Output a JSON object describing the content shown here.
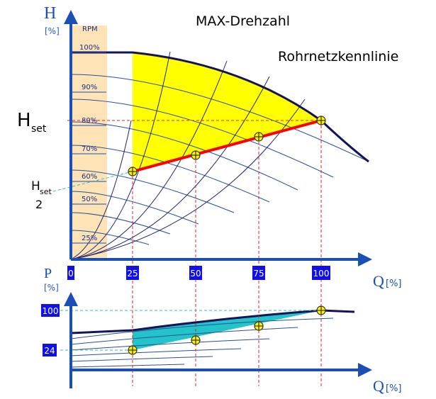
{
  "colors": {
    "axis": "#1a4fb5",
    "rpm_band": "#fde3b6",
    "rpm_label": "#1a2e8a",
    "h_label_blue": "#2a55c8",
    "yellow_fill": "#ffff00",
    "cyan_fill": "#22c3c9",
    "red_line": "#ff0000",
    "dark_curve": "#14145a",
    "guide_red": "#e02020",
    "guide_cyan": "#2fbfbf",
    "marker_fill": "#fff200",
    "tick_box": "#1010ee",
    "tick_text": "#ffffff"
  },
  "labels": {
    "max_speed": "MAX-Drehzahl",
    "system_curve": "Rohrnetzkennlinie",
    "h_axis": "H",
    "h_unit": "[%]",
    "rpm": "RPM",
    "h_set": "H",
    "h_set_sub": "set",
    "h_set2": "H",
    "h_set2_sub": "set",
    "h_set2_num": "2",
    "p_axis": "P",
    "p_unit": "[%]",
    "q_axis": "Q",
    "q_unit": "[%]",
    "q_axis2": "Q",
    "q_unit2": "[%]"
  },
  "rpm_ticks": [
    "100%",
    "90%",
    "80%",
    "70%",
    "60%",
    "50%",
    "25%"
  ],
  "q_ticks": [
    "0",
    "25",
    "50",
    "75",
    "100"
  ],
  "p_ticks": [
    "100",
    "24"
  ],
  "chart_data": [
    {
      "type": "line",
      "xlabel": "Q[%]",
      "ylabel": "H [%]",
      "x_ticks": [
        0,
        25,
        50,
        75,
        100
      ],
      "rpm_levels": [
        100,
        90,
        80,
        70,
        60,
        50,
        25
      ],
      "series": [
        {
          "name": "MAX-Drehzahl",
          "x": [
            25,
            50,
            75,
            100
          ],
          "y": [
            100,
            96,
            89,
            80
          ]
        },
        {
          "name": "Rohrnetzkennlinie",
          "x": [
            25,
            50,
            75,
            100
          ],
          "y": [
            62,
            68,
            74,
            80
          ]
        }
      ],
      "operating_points": [
        {
          "x": 25,
          "y": 62
        },
        {
          "x": 50,
          "y": 68
        },
        {
          "x": 75,
          "y": 74
        },
        {
          "x": 100,
          "y": 80
        }
      ]
    },
    {
      "type": "line",
      "xlabel": "Q[%]",
      "ylabel": "P [%]",
      "x_ticks": [
        0,
        25,
        50,
        75,
        100
      ],
      "y_ticks": [
        100,
        24
      ],
      "operating_points": [
        {
          "x": 25,
          "y": 24
        },
        {
          "x": 50,
          "y": 45
        },
        {
          "x": 75,
          "y": 72
        },
        {
          "x": 100,
          "y": 100
        }
      ]
    }
  ]
}
